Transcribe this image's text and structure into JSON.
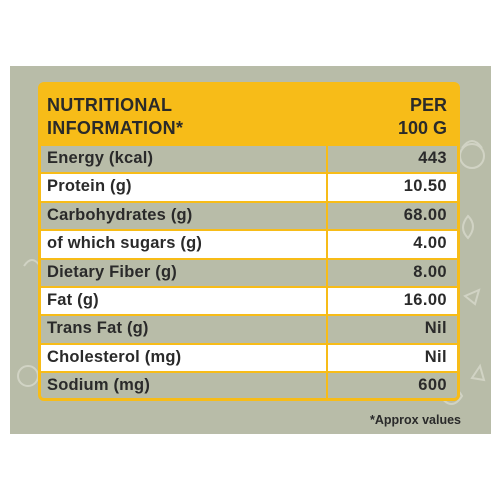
{
  "header": {
    "left_line1": "NUTRITIONAL",
    "left_line2": "INFORMATION*",
    "right_line1": "PER",
    "right_line2": "100 G"
  },
  "rows": [
    {
      "label": "Energy (kcal)",
      "value": "443"
    },
    {
      "label": "Protein (g)",
      "value": "10.50"
    },
    {
      "label": "Carbohydrates (g)",
      "value": "68.00"
    },
    {
      "label": "of which sugars (g)",
      "value": "4.00"
    },
    {
      "label": "Dietary Fiber (g)",
      "value": "8.00"
    },
    {
      "label": "Fat (g)",
      "value": "16.00"
    },
    {
      "label": "Trans Fat (g)",
      "value": "Nil"
    },
    {
      "label": "Cholesterol (mg)",
      "value": "Nil"
    },
    {
      "label": "Sodium (mg)",
      "value": "600"
    }
  ],
  "footnote": "*Approx values",
  "colors": {
    "accent": "#f7bc18",
    "panel": "#b8bca8",
    "text": "#2a2a2a"
  }
}
